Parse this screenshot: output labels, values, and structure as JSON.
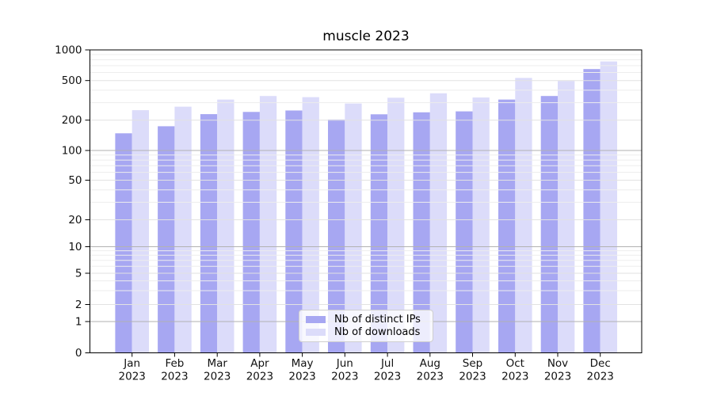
{
  "chart_data": {
    "type": "bar",
    "title": "muscle 2023",
    "categories": [
      "Jan",
      "Feb",
      "Mar",
      "Apr",
      "May",
      "Jun",
      "Jul",
      "Aug",
      "Sep",
      "Oct",
      "Nov",
      "Dec"
    ],
    "year_label": "2023",
    "series": [
      {
        "name": "Nb of distinct IPs",
        "color": "#a7a7f2",
        "values": [
          148,
          174,
          230,
          242,
          250,
          203,
          229,
          240,
          245,
          322,
          350,
          648
        ]
      },
      {
        "name": "Nb of downloads",
        "color": "#dcdcfa",
        "values": [
          252,
          273,
          322,
          350,
          340,
          294,
          336,
          372,
          338,
          530,
          495,
          770
        ]
      }
    ],
    "yticks": [
      0,
      1,
      2,
      5,
      10,
      20,
      50,
      100,
      200,
      500,
      1000
    ],
    "ylim": [
      0,
      1000
    ],
    "yscale": "symlog",
    "xlabel": "",
    "ylabel": "",
    "grid": true,
    "legend_position": "lower center"
  }
}
